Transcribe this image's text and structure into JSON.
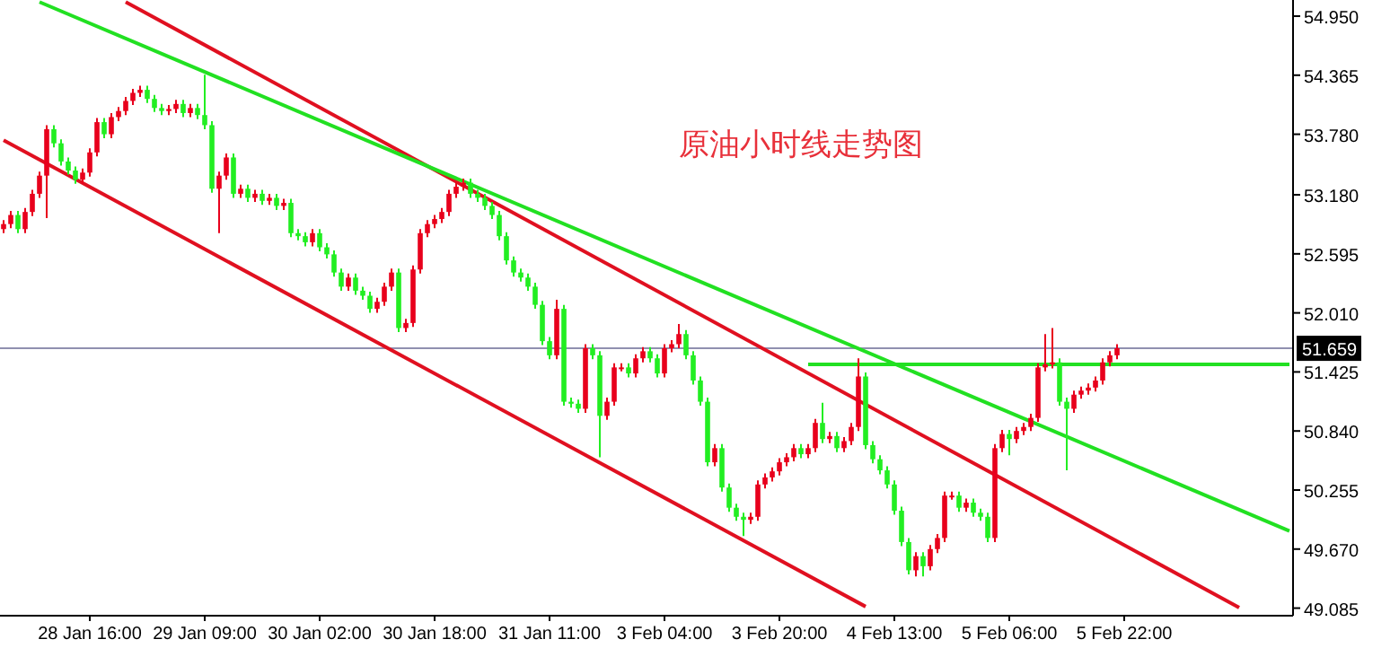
{
  "chart_data": {
    "type": "candlestick",
    "title": "原油小时线走势图",
    "categories": [
      null,
      null,
      null,
      null,
      null,
      null,
      null,
      null,
      null,
      null,
      null,
      null,
      "28 Jan 16:00",
      null,
      null,
      null,
      null,
      null,
      null,
      null,
      null,
      null,
      null,
      null,
      null,
      null,
      null,
      null,
      "29 Jan 09:00",
      null,
      null,
      null,
      null,
      null,
      null,
      null,
      null,
      null,
      null,
      null,
      null,
      null,
      null,
      null,
      "30 Jan 02:00",
      null,
      null,
      null,
      null,
      null,
      null,
      null,
      null,
      null,
      null,
      null,
      null,
      null,
      null,
      null,
      "30 Jan 18:00",
      null,
      null,
      null,
      null,
      null,
      null,
      null,
      null,
      null,
      null,
      null,
      null,
      null,
      null,
      null,
      "31 Jan 11:00",
      null,
      null,
      null,
      null,
      null,
      null,
      null,
      null,
      null,
      null,
      null,
      null,
      null,
      null,
      null,
      "3 Feb 04:00",
      null,
      null,
      null,
      null,
      null,
      null,
      null,
      null,
      null,
      null,
      null,
      null,
      null,
      null,
      null,
      "3 Feb 20:00",
      null,
      null,
      null,
      null,
      null,
      null,
      null,
      null,
      null,
      null,
      null,
      null,
      null,
      null,
      null,
      "4 Feb 13:00",
      null,
      null,
      null,
      null,
      null,
      null,
      null,
      null,
      null,
      null,
      null,
      null,
      null,
      null,
      null,
      "5 Feb 06:00",
      null,
      null,
      null,
      null,
      null,
      null,
      null,
      null,
      null,
      null,
      null,
      null,
      null,
      null,
      null,
      "5 Feb 22:00",
      null,
      null,
      null,
      null,
      null,
      null,
      null,
      null,
      null,
      null,
      null,
      null,
      null,
      null,
      null,
      null,
      null,
      null,
      null,
      null,
      null,
      null,
      null
    ],
    "ylim": [
      49.01,
      55.11
    ],
    "yticks": [
      {
        "value": 54.95,
        "label": "54.950"
      },
      {
        "value": 54.365,
        "label": "54.365"
      },
      {
        "value": 53.78,
        "label": "53.780"
      },
      {
        "value": 53.18,
        "label": "53.180"
      },
      {
        "value": 52.595,
        "label": "52.595"
      },
      {
        "value": 52.01,
        "label": "52.010"
      },
      {
        "value": 51.425,
        "label": "51.425"
      },
      {
        "value": 50.84,
        "label": "50.840"
      },
      {
        "value": 50.255,
        "label": "50.255"
      },
      {
        "value": 49.67,
        "label": "49.670"
      },
      {
        "value": 49.085,
        "label": "49.085"
      }
    ],
    "ref_lines": [
      {
        "axis": "y",
        "value": 51.659,
        "label": "51.659",
        "color": "#9090b0"
      }
    ],
    "series": [
      {
        "colors": [
          "#e8001c",
          "#e8001c",
          "#22ee22",
          "#e8001c",
          "#e8001c",
          "#e8001c",
          "#e8001c",
          "#22ee22",
          "#22ee22",
          "#22ee22",
          "#22ee22",
          "#e8001c",
          "#e8001c",
          "#e8001c",
          "#22ee22",
          "#e8001c",
          "#e8001c",
          "#e8001c",
          "#e8001c",
          "#e8001c",
          "#22ee22",
          "#22ee22",
          "#22ee22",
          "#e8001c",
          "#e8001c",
          "#22ee22",
          "#e8001c",
          "#22ee22",
          "#22ee22",
          "#22ee22",
          "#e8001c",
          "#e8001c",
          "#22ee22",
          "#e8001c",
          "#22ee22",
          "#e8001c",
          "#22ee22",
          "#e8001c",
          "#22ee22",
          "#e8001c",
          "#22ee22",
          "#22ee22",
          "#22ee22",
          "#e8001c",
          "#22ee22",
          "#22ee22",
          "#22ee22",
          "#22ee22",
          "#e8001c",
          "#22ee22",
          "#22ee22",
          "#22ee22",
          "#e8001c",
          "#e8001c",
          "#e8001c",
          "#22ee22",
          "#e8001c",
          "#e8001c",
          "#e8001c",
          "#e8001c",
          "#e8001c",
          "#e8001c",
          "#e8001c",
          "#e8001c",
          "#e8001c",
          "#22ee22",
          "#22ee22",
          "#22ee22",
          "#22ee22",
          "#22ee22",
          "#22ee22",
          "#22ee22",
          "#22ee22",
          "#22ee22",
          "#22ee22",
          "#22ee22",
          "#22ee22",
          "#e8001c",
          "#22ee22",
          "#22ee22",
          "#22ee22",
          "#e8001c",
          "#22ee22",
          "#22ee22",
          "#e8001c",
          "#e8001c",
          "#e8001c",
          "#22ee22",
          "#e8001c",
          "#e8001c",
          "#22ee22",
          "#22ee22",
          "#e8001c",
          "#e8001c",
          "#e8001c",
          "#22ee22",
          "#22ee22",
          "#22ee22",
          "#22ee22",
          "#e8001c",
          "#22ee22",
          "#22ee22",
          "#22ee22",
          "#22ee22",
          "#e8001c",
          "#e8001c",
          "#e8001c",
          "#e8001c",
          "#e8001c",
          "#e8001c",
          "#e8001c",
          "#22ee22",
          "#e8001c",
          "#e8001c",
          "#22ee22",
          "#e8001c",
          "#22ee22",
          "#e8001c",
          "#e8001c",
          "#e8001c",
          "#22ee22",
          "#22ee22",
          "#22ee22",
          "#22ee22",
          "#22ee22",
          "#22ee22",
          "#22ee22",
          "#e8001c",
          "#22ee22",
          "#e8001c",
          "#e8001c",
          "#e8001c",
          "#e8001c",
          "#22ee22",
          "#e8001c",
          "#22ee22",
          "#22ee22",
          "#22ee22",
          "#e8001c",
          "#e8001c",
          "#22ee22",
          "#e8001c",
          "#e8001c",
          "#e8001c",
          "#e8001c",
          "#e8001c",
          "#e8001c",
          "#22ee22",
          "#22ee22",
          "#e8001c",
          "#e8001c",
          "#e8001c",
          "#e8001c",
          "#e8001c",
          "#e8001c",
          "#e8001c",
          null,
          null,
          null,
          null,
          null,
          null,
          null,
          null,
          null,
          null,
          null,
          null,
          null,
          null,
          null,
          null,
          null,
          null,
          null,
          null,
          null,
          null,
          null,
          null
        ],
        "ohlc": [
          [
            52.84,
            52.93,
            52.8,
            52.89
          ],
          [
            52.89,
            53.02,
            52.85,
            52.98
          ],
          [
            52.98,
            53.02,
            52.8,
            52.84
          ],
          [
            52.84,
            53.05,
            52.8,
            53.01
          ],
          [
            53.01,
            53.23,
            52.97,
            53.19
          ],
          [
            53.19,
            53.41,
            53.15,
            53.37
          ],
          [
            53.37,
            53.87,
            52.95,
            53.83
          ],
          [
            53.83,
            53.87,
            53.65,
            53.69
          ],
          [
            53.69,
            53.73,
            53.47,
            53.51
          ],
          [
            53.51,
            53.55,
            53.38,
            53.42
          ],
          [
            53.42,
            53.46,
            53.29,
            53.33
          ],
          [
            53.33,
            53.44,
            53.29,
            53.4
          ],
          [
            53.4,
            53.64,
            53.36,
            53.6
          ],
          [
            53.6,
            53.94,
            53.56,
            53.9
          ],
          [
            53.9,
            53.94,
            53.74,
            53.78
          ],
          [
            53.78,
            53.99,
            53.74,
            53.95
          ],
          [
            53.95,
            54.05,
            53.91,
            54.01
          ],
          [
            54.01,
            54.15,
            53.97,
            54.11
          ],
          [
            54.11,
            54.23,
            54.07,
            54.19
          ],
          [
            54.19,
            54.26,
            54.15,
            54.22
          ],
          [
            54.22,
            54.26,
            54.09,
            54.13
          ],
          [
            54.13,
            54.17,
            54.0,
            54.04
          ],
          [
            54.04,
            54.08,
            53.97,
            54.01
          ],
          [
            54.01,
            54.07,
            53.97,
            54.03
          ],
          [
            54.03,
            54.12,
            53.99,
            54.08
          ],
          [
            54.08,
            54.12,
            53.95,
            53.99
          ],
          [
            53.99,
            54.08,
            53.95,
            54.04
          ],
          [
            54.04,
            54.08,
            53.93,
            53.97
          ],
          [
            53.97,
            54.37,
            53.83,
            53.87
          ],
          [
            53.87,
            53.91,
            53.2,
            53.24
          ],
          [
            53.24,
            53.41,
            52.8,
            53.37
          ],
          [
            53.37,
            53.59,
            53.33,
            53.55
          ],
          [
            53.55,
            53.59,
            53.15,
            53.19
          ],
          [
            53.19,
            53.28,
            53.15,
            53.24
          ],
          [
            53.24,
            53.28,
            53.11,
            53.15
          ],
          [
            53.15,
            53.23,
            53.11,
            53.19
          ],
          [
            53.19,
            53.23,
            53.08,
            53.12
          ],
          [
            53.12,
            53.19,
            53.08,
            53.15
          ],
          [
            53.15,
            53.19,
            53.03,
            53.07
          ],
          [
            53.07,
            53.14,
            53.03,
            53.1
          ],
          [
            53.1,
            53.14,
            52.76,
            52.8
          ],
          [
            52.8,
            52.84,
            52.73,
            52.77
          ],
          [
            52.77,
            52.81,
            52.67,
            52.71
          ],
          [
            52.71,
            52.84,
            52.67,
            52.8
          ],
          [
            52.8,
            52.84,
            52.62,
            52.66
          ],
          [
            52.66,
            52.7,
            52.55,
            52.59
          ],
          [
            52.59,
            52.63,
            52.37,
            52.41
          ],
          [
            52.41,
            52.45,
            52.23,
            52.27
          ],
          [
            52.27,
            52.4,
            52.23,
            52.36
          ],
          [
            52.36,
            52.4,
            52.19,
            52.23
          ],
          [
            52.23,
            52.27,
            52.14,
            52.18
          ],
          [
            52.18,
            52.22,
            52.01,
            52.05
          ],
          [
            52.05,
            52.16,
            52.01,
            52.12
          ],
          [
            52.12,
            52.31,
            52.08,
            52.27
          ],
          [
            52.27,
            52.45,
            52.23,
            52.41
          ],
          [
            52.41,
            52.45,
            51.82,
            51.86
          ],
          [
            51.86,
            51.95,
            51.82,
            51.91
          ],
          [
            51.91,
            52.48,
            51.87,
            52.44
          ],
          [
            52.44,
            52.84,
            52.4,
            52.8
          ],
          [
            52.8,
            52.93,
            52.76,
            52.89
          ],
          [
            52.89,
            52.98,
            52.85,
            52.94
          ],
          [
            52.94,
            53.05,
            52.9,
            53.01
          ],
          [
            53.01,
            53.23,
            52.97,
            53.19
          ],
          [
            53.19,
            53.3,
            53.15,
            53.26
          ],
          [
            53.26,
            53.34,
            53.22,
            53.3
          ],
          [
            53.3,
            53.34,
            53.15,
            53.19
          ],
          [
            53.19,
            53.23,
            53.11,
            53.15
          ],
          [
            53.15,
            53.19,
            53.03,
            53.07
          ],
          [
            53.07,
            53.11,
            52.94,
            52.98
          ],
          [
            52.98,
            53.02,
            52.73,
            52.77
          ],
          [
            52.77,
            52.81,
            52.49,
            52.53
          ],
          [
            52.53,
            52.57,
            52.37,
            52.41
          ],
          [
            52.41,
            52.45,
            52.32,
            52.36
          ],
          [
            52.36,
            52.4,
            52.23,
            52.27
          ],
          [
            52.27,
            52.31,
            52.05,
            52.09
          ],
          [
            52.09,
            52.13,
            51.69,
            51.73
          ],
          [
            51.73,
            51.77,
            51.55,
            51.59
          ],
          [
            51.59,
            52.14,
            51.55,
            52.05
          ],
          [
            52.05,
            52.09,
            51.09,
            51.13
          ],
          [
            51.13,
            51.17,
            51.07,
            51.11
          ],
          [
            51.11,
            51.15,
            51.02,
            51.06
          ],
          [
            51.06,
            51.7,
            51.02,
            51.66
          ],
          [
            51.66,
            51.7,
            51.55,
            51.59
          ],
          [
            51.59,
            51.63,
            50.58,
            50.99
          ],
          [
            50.99,
            51.17,
            50.95,
            51.13
          ],
          [
            51.13,
            51.51,
            51.09,
            51.47
          ],
          [
            51.47,
            51.51,
            51.43,
            51.47
          ],
          [
            51.47,
            51.51,
            51.37,
            51.41
          ],
          [
            51.41,
            51.6,
            51.37,
            51.56
          ],
          [
            51.56,
            51.67,
            51.52,
            51.63
          ],
          [
            51.63,
            51.67,
            51.52,
            51.56
          ],
          [
            51.56,
            51.6,
            51.37,
            51.41
          ],
          [
            51.41,
            51.7,
            51.37,
            51.66
          ],
          [
            51.66,
            51.74,
            51.62,
            51.7
          ],
          [
            51.7,
            51.9,
            51.66,
            51.8
          ],
          [
            51.8,
            51.84,
            51.55,
            51.59
          ],
          [
            51.59,
            51.63,
            51.3,
            51.34
          ],
          [
            51.34,
            51.38,
            51.09,
            51.13
          ],
          [
            51.13,
            51.17,
            50.49,
            50.53
          ],
          [
            50.53,
            50.71,
            50.49,
            50.67
          ],
          [
            50.67,
            50.71,
            50.24,
            50.28
          ],
          [
            50.28,
            50.32,
            50.04,
            50.08
          ],
          [
            50.08,
            50.12,
            49.95,
            49.99
          ],
          [
            49.99,
            50.03,
            49.8,
            49.96
          ],
          [
            49.96,
            50.03,
            49.92,
            49.99
          ],
          [
            49.99,
            50.35,
            49.95,
            50.31
          ],
          [
            50.31,
            50.42,
            50.27,
            50.38
          ],
          [
            50.38,
            50.48,
            50.34,
            50.44
          ],
          [
            50.44,
            50.57,
            50.4,
            50.53
          ],
          [
            50.53,
            50.62,
            50.49,
            50.58
          ],
          [
            50.58,
            50.71,
            50.54,
            50.67
          ],
          [
            50.67,
            50.71,
            50.57,
            50.61
          ],
          [
            50.61,
            50.71,
            50.57,
            50.67
          ],
          [
            50.67,
            50.96,
            50.63,
            50.92
          ],
          [
            50.92,
            51.12,
            50.72,
            50.76
          ],
          [
            50.76,
            50.83,
            50.72,
            50.79
          ],
          [
            50.79,
            50.83,
            50.63,
            50.67
          ],
          [
            50.67,
            50.78,
            50.63,
            50.74
          ],
          [
            50.74,
            50.92,
            50.7,
            50.88
          ],
          [
            50.88,
            51.56,
            50.84,
            51.38
          ],
          [
            51.38,
            51.42,
            50.66,
            50.7
          ],
          [
            50.7,
            50.74,
            50.52,
            50.56
          ],
          [
            50.56,
            50.6,
            50.41,
            50.45
          ],
          [
            50.45,
            50.49,
            50.27,
            50.31
          ],
          [
            50.31,
            50.35,
            50.01,
            50.05
          ],
          [
            50.05,
            50.09,
            49.7,
            49.74
          ],
          [
            49.74,
            49.78,
            49.42,
            49.46
          ],
          [
            49.46,
            49.64,
            49.4,
            49.6
          ],
          [
            49.6,
            49.64,
            49.4,
            49.5
          ],
          [
            49.5,
            49.71,
            49.46,
            49.67
          ],
          [
            49.67,
            49.82,
            49.63,
            49.78
          ],
          [
            49.78,
            50.24,
            49.74,
            50.2
          ],
          [
            50.2,
            50.24,
            50.16,
            50.2
          ],
          [
            50.2,
            50.24,
            50.04,
            50.08
          ],
          [
            50.08,
            50.17,
            50.04,
            50.13
          ],
          [
            50.13,
            50.17,
            49.99,
            50.03
          ],
          [
            50.03,
            50.07,
            49.95,
            49.99
          ],
          [
            49.99,
            50.03,
            49.74,
            49.78
          ],
          [
            49.78,
            50.71,
            49.74,
            50.67
          ],
          [
            50.67,
            50.85,
            50.63,
            50.81
          ],
          [
            50.81,
            50.85,
            50.6,
            50.76
          ],
          [
            50.76,
            50.88,
            50.72,
            50.84
          ],
          [
            50.84,
            50.92,
            50.8,
            50.88
          ],
          [
            50.88,
            51.01,
            50.84,
            50.97
          ],
          [
            50.97,
            51.51,
            50.93,
            51.47
          ],
          [
            51.47,
            51.8,
            51.43,
            51.5
          ],
          [
            51.5,
            51.86,
            51.46,
            51.52
          ],
          [
            51.52,
            51.56,
            51.09,
            51.13
          ],
          [
            51.13,
            51.17,
            50.45,
            51.06
          ],
          [
            51.06,
            51.24,
            51.02,
            51.2
          ],
          [
            51.2,
            51.28,
            51.16,
            51.24
          ],
          [
            51.24,
            51.31,
            51.2,
            51.27
          ],
          [
            51.27,
            51.38,
            51.23,
            51.34
          ],
          [
            51.34,
            51.56,
            51.3,
            51.52
          ],
          [
            51.52,
            51.63,
            51.48,
            51.59
          ],
          [
            51.59,
            51.7,
            51.55,
            51.66
          ],
          null,
          null,
          null,
          null,
          null,
          null,
          null,
          null,
          null,
          null,
          null,
          null,
          null,
          null,
          null,
          null,
          null,
          null,
          null,
          null,
          null,
          null,
          null,
          null
        ]
      },
      {
        "type": "line",
        "color": "#e01020",
        "values": [
          null,
          null,
          null,
          null,
          null,
          null,
          null,
          null,
          null,
          null,
          null,
          null,
          null,
          null,
          null,
          null,
          null,
          55.09,
          null,
          null,
          null,
          null,
          null,
          null,
          null,
          null,
          null,
          null,
          null,
          null,
          null,
          null,
          null,
          null,
          null,
          null,
          null,
          null,
          null,
          null,
          null,
          null,
          null,
          null,
          null,
          null,
          null,
          null,
          null,
          null,
          null,
          null,
          null,
          null,
          null,
          null,
          null,
          null,
          null,
          null,
          null,
          null,
          null,
          null,
          null,
          null,
          null,
          null,
          null,
          null,
          null,
          null,
          null,
          null,
          null,
          null,
          null,
          null,
          null,
          null,
          null,
          null,
          null,
          null,
          null,
          null,
          null,
          null,
          null,
          null,
          null,
          null,
          null,
          null,
          null,
          null,
          null,
          null,
          null,
          null,
          null,
          null,
          null,
          null,
          null,
          null,
          null,
          null,
          null,
          null,
          null,
          null,
          null,
          null,
          null,
          null,
          null,
          null,
          null,
          null,
          null,
          null,
          null,
          null,
          null,
          null,
          null,
          null,
          null,
          null,
          null,
          null,
          null,
          null,
          null,
          null,
          null,
          null,
          null,
          null,
          null,
          null,
          null,
          null,
          null,
          null,
          null,
          null,
          null,
          null,
          null,
          null,
          null,
          null,
          null,
          null,
          null,
          null,
          null,
          null,
          null,
          null,
          null,
          null,
          null,
          null,
          null,
          null,
          null,
          null,
          null,
          null,
          49.09,
          null,
          null,
          null,
          null,
          null,
          null,
          null
        ]
      },
      {
        "type": "line",
        "color": "#e01020",
        "values": [
          53.72,
          null,
          null,
          null,
          null,
          null,
          null,
          null,
          null,
          null,
          null,
          null,
          null,
          null,
          null,
          null,
          null,
          null,
          null,
          null,
          null,
          null,
          null,
          null,
          null,
          null,
          null,
          null,
          null,
          null,
          null,
          null,
          null,
          null,
          null,
          null,
          null,
          null,
          null,
          null,
          null,
          null,
          null,
          null,
          null,
          null,
          null,
          null,
          null,
          null,
          null,
          null,
          null,
          null,
          null,
          null,
          null,
          null,
          null,
          null,
          null,
          null,
          null,
          null,
          null,
          null,
          null,
          null,
          null,
          null,
          null,
          null,
          null,
          null,
          null,
          null,
          null,
          null,
          null,
          null,
          null,
          null,
          null,
          null,
          null,
          null,
          null,
          null,
          null,
          null,
          null,
          null,
          null,
          null,
          null,
          null,
          null,
          null,
          null,
          null,
          null,
          null,
          null,
          null,
          null,
          null,
          null,
          null,
          null,
          null,
          null,
          null,
          null,
          null,
          null,
          null,
          null,
          null,
          null,
          null,
          49.1,
          null,
          null,
          null,
          null,
          null,
          null,
          null,
          null,
          null,
          null,
          null,
          null,
          null,
          null,
          null,
          null,
          null,
          null,
          null,
          null,
          null,
          null,
          null,
          null,
          null,
          null,
          null,
          null,
          null,
          null,
          null,
          null,
          null,
          null,
          null,
          null,
          null,
          null,
          null,
          null,
          null,
          null,
          null,
          null,
          null,
          null,
          null,
          null,
          null,
          null,
          null,
          null,
          null,
          null,
          null,
          null,
          null,
          null,
          null
        ]
      },
      {
        "type": "line",
        "color": "#22e022",
        "values": [
          null,
          null,
          null,
          null,
          null,
          55.09,
          null,
          null,
          null,
          null,
          null,
          null,
          null,
          null,
          null,
          null,
          null,
          null,
          null,
          null,
          null,
          null,
          null,
          null,
          null,
          null,
          null,
          null,
          null,
          null,
          null,
          null,
          null,
          null,
          null,
          null,
          null,
          null,
          null,
          null,
          null,
          null,
          null,
          null,
          null,
          null,
          null,
          null,
          null,
          null,
          null,
          null,
          null,
          null,
          null,
          null,
          null,
          null,
          null,
          null,
          null,
          null,
          null,
          null,
          null,
          null,
          null,
          null,
          null,
          null,
          null,
          null,
          null,
          null,
          null,
          null,
          null,
          null,
          null,
          null,
          null,
          null,
          null,
          null,
          null,
          null,
          null,
          null,
          null,
          null,
          null,
          null,
          null,
          null,
          null,
          null,
          null,
          null,
          null,
          null,
          null,
          null,
          null,
          null,
          null,
          null,
          null,
          null,
          null,
          null,
          null,
          null,
          null,
          null,
          null,
          null,
          null,
          null,
          null,
          null,
          null,
          null,
          null,
          null,
          null,
          null,
          null,
          null,
          null,
          null,
          null,
          null,
          null,
          null,
          null,
          null,
          null,
          null,
          null,
          null,
          null,
          null,
          null,
          null,
          null,
          null,
          null,
          null,
          null,
          null,
          null,
          null,
          null,
          null,
          null,
          null,
          null,
          null,
          null,
          null,
          null,
          null,
          null,
          null,
          null,
          null,
          null,
          null,
          null,
          null,
          null,
          null,
          null,
          null,
          null,
          null,
          null,
          null,
          null,
          49.85
        ]
      },
      {
        "type": "line",
        "color": "#22e022",
        "values": [
          null,
          null,
          null,
          null,
          null,
          null,
          null,
          null,
          null,
          null,
          null,
          null,
          null,
          null,
          null,
          null,
          null,
          null,
          null,
          null,
          null,
          null,
          null,
          null,
          null,
          null,
          null,
          null,
          null,
          null,
          null,
          null,
          null,
          null,
          null,
          null,
          null,
          null,
          null,
          null,
          null,
          null,
          null,
          null,
          null,
          null,
          null,
          null,
          null,
          null,
          null,
          null,
          null,
          null,
          null,
          null,
          null,
          null,
          null,
          null,
          null,
          null,
          null,
          null,
          null,
          null,
          null,
          null,
          null,
          null,
          null,
          null,
          null,
          null,
          null,
          null,
          null,
          null,
          null,
          null,
          null,
          null,
          null,
          null,
          null,
          null,
          null,
          null,
          null,
          null,
          null,
          null,
          null,
          null,
          null,
          null,
          null,
          null,
          null,
          null,
          null,
          null,
          null,
          null,
          null,
          null,
          null,
          null,
          null,
          null,
          null,
          null,
          51.5,
          null,
          null,
          null,
          null,
          null,
          null,
          null,
          null,
          null,
          null,
          null,
          null,
          null,
          null,
          null,
          null,
          null,
          null,
          null,
          null,
          null,
          null,
          null,
          null,
          null,
          null,
          null,
          null,
          null,
          null,
          null,
          null,
          null,
          null,
          null,
          null,
          null,
          null,
          null,
          null,
          null,
          null,
          null,
          null,
          null,
          null,
          null,
          null,
          null,
          null,
          null,
          null,
          null,
          null,
          null,
          null,
          null,
          null,
          null,
          null,
          null,
          null,
          null,
          null,
          null,
          null,
          51.5
        ]
      }
    ]
  }
}
